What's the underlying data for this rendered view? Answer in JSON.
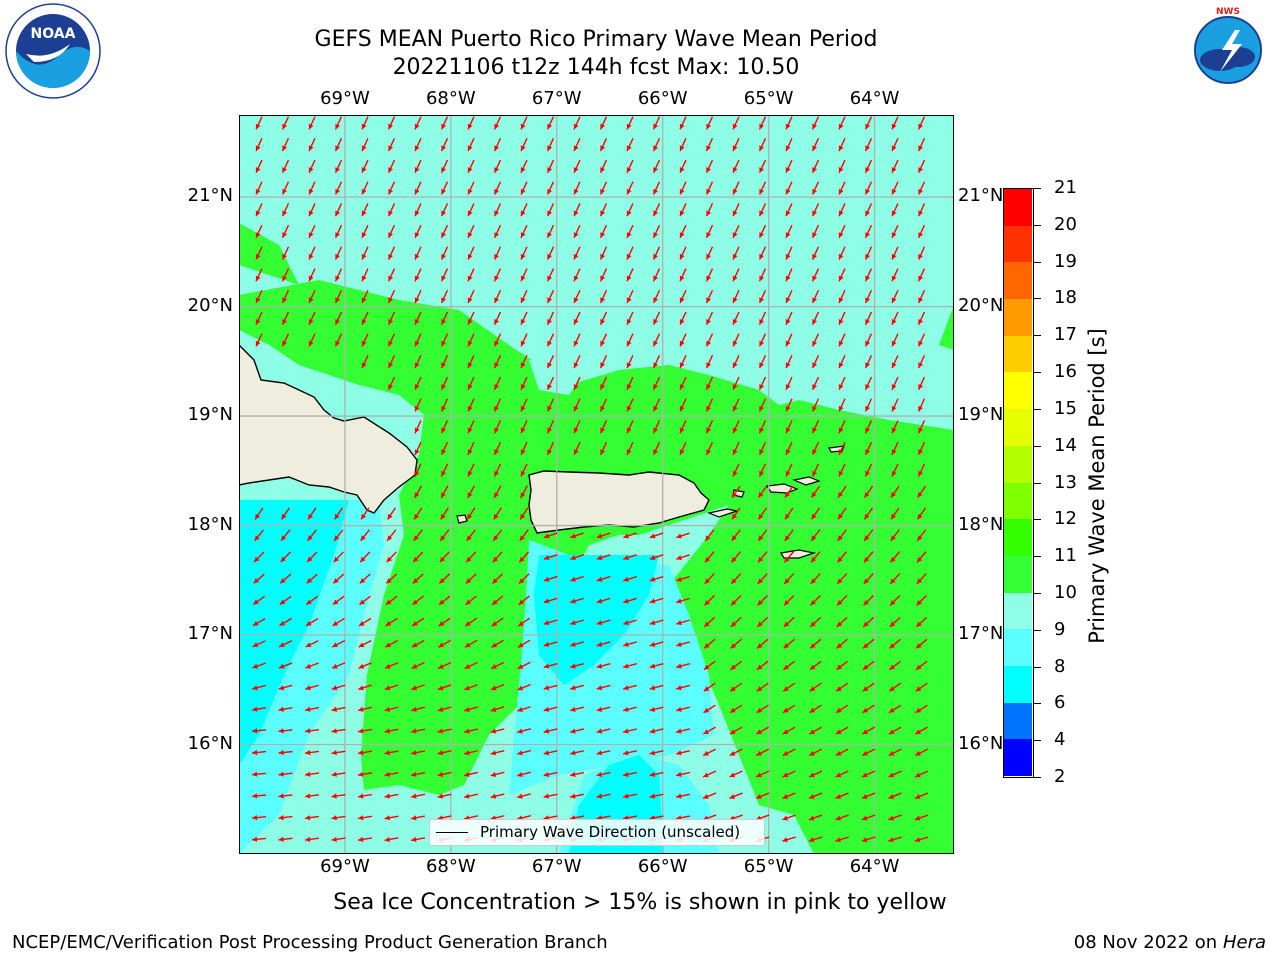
{
  "header": {
    "title_line1": "GEFS MEAN Puerto Rico Primary Wave Mean Period",
    "title_line2": "20221106 t12z 144h fcst   Max: 10.50"
  },
  "logos": {
    "left": {
      "text": "NOAA",
      "ring_text": "NATIONAL OCEANIC AND ATMOSPHERIC ADMINISTRATION · U.S. DEPARTMENT OF COMMERCE"
    },
    "right": {
      "ring_text": "NATIONAL WEATHER SERVICE"
    }
  },
  "map": {
    "lon_labels": [
      "69°W",
      "68°W",
      "67°W",
      "66°W",
      "65°W",
      "64°W"
    ],
    "lat_labels": [
      "21°N",
      "20°N",
      "19°N",
      "18°N",
      "17°N",
      "16°N"
    ],
    "extent": {
      "lon_min": -70.0,
      "lon_max": -63.25,
      "lat_min": 15.0,
      "lat_max": 21.75
    },
    "land_color": "#efedde",
    "grid_color": "#b0b0b0",
    "arrow_color": "#ff0000"
  },
  "legend": {
    "label": "Primary Wave Direction (unscaled)"
  },
  "colorbar": {
    "title": "Primary Wave Mean Period [s]",
    "ticks": [
      "2",
      "4",
      "6",
      "8",
      "9",
      "10",
      "11",
      "12",
      "13",
      "14",
      "15",
      "16",
      "17",
      "18",
      "19",
      "20",
      "21"
    ],
    "colors": [
      "#0000ff",
      "#0073ff",
      "#00ffff",
      "#5cffff",
      "#8effe6",
      "#33ff33",
      "#33ff00",
      "#80ff00",
      "#b3ff00",
      "#e6ff00",
      "#ffff00",
      "#ffcc00",
      "#ff9900",
      "#ff6600",
      "#ff3300",
      "#ff0000"
    ]
  },
  "sea_ice_note": "Sea Ice Concentration > 15% is shown in pink to yellow",
  "footer": {
    "left": "NCEP/EMC/Verification Post Processing Product Generation Branch",
    "date": "08 Nov 2022 on",
    "machine": "Hera"
  }
}
